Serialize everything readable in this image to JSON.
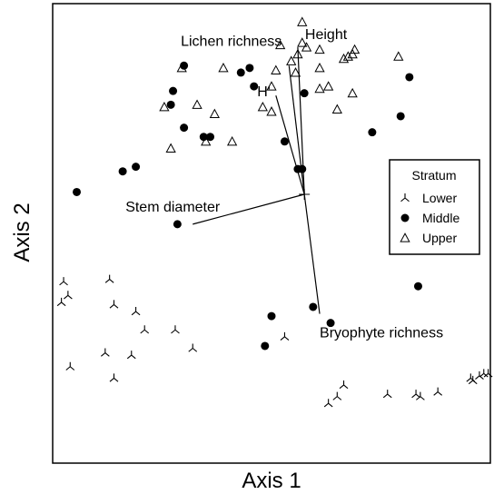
{
  "chart_data": {
    "type": "scatter",
    "xlabel": "Axis 1",
    "ylabel": "Axis 2",
    "xlim": [
      0,
      100
    ],
    "ylim": [
      0,
      100
    ],
    "grid": false,
    "axis_ticks": false,
    "legend": {
      "title": "Stratum",
      "placement": "right",
      "entries": [
        {
          "name": "Lower",
          "marker": "tri-down"
        },
        {
          "name": "Middle",
          "marker": "circle"
        },
        {
          "name": "Upper",
          "marker": "triangle-open"
        }
      ]
    },
    "series": [
      {
        "name": "Lower",
        "marker": "tri-down",
        "points": [
          [
            2.5,
            39.5
          ],
          [
            3.5,
            36.5
          ],
          [
            2,
            35
          ],
          [
            13,
            40
          ],
          [
            14,
            34.5
          ],
          [
            19,
            33
          ],
          [
            21,
            29
          ],
          [
            28,
            29
          ],
          [
            12,
            24
          ],
          [
            18,
            23.5
          ],
          [
            4,
            21
          ],
          [
            14,
            18.5
          ],
          [
            32,
            25
          ],
          [
            53,
            27.5
          ],
          [
            66.5,
            17
          ],
          [
            65,
            14.5
          ],
          [
            63,
            13
          ],
          [
            76.5,
            15
          ],
          [
            83,
            15
          ],
          [
            84,
            14.5
          ],
          [
            88,
            15.5
          ],
          [
            95.5,
            18.5
          ],
          [
            96,
            18
          ],
          [
            97.5,
            19
          ],
          [
            98.5,
            19.5
          ],
          [
            99.5,
            19.5
          ]
        ]
      },
      {
        "name": "Middle",
        "marker": "circle",
        "points": [
          [
            30,
            86.5
          ],
          [
            27.5,
            81
          ],
          [
            27,
            78
          ],
          [
            30,
            73
          ],
          [
            34.5,
            71
          ],
          [
            36,
            71
          ],
          [
            43,
            85
          ],
          [
            45,
            86
          ],
          [
            46,
            82
          ],
          [
            53,
            70
          ],
          [
            56,
            64
          ],
          [
            57,
            64
          ],
          [
            57.5,
            80.5
          ],
          [
            81.5,
            84
          ],
          [
            79.5,
            75.5
          ],
          [
            73,
            72
          ],
          [
            16,
            63.5
          ],
          [
            19,
            64.5
          ],
          [
            5.5,
            59
          ],
          [
            28.5,
            52
          ],
          [
            50,
            32
          ],
          [
            59.5,
            34
          ],
          [
            63.5,
            30.5
          ],
          [
            48.5,
            25.5
          ],
          [
            83.5,
            38.5
          ]
        ]
      },
      {
        "name": "Upper",
        "marker": "triangle-open",
        "points": [
          [
            57,
            96
          ],
          [
            52,
            91
          ],
          [
            57,
            91.5
          ],
          [
            56,
            89
          ],
          [
            58,
            90.5
          ],
          [
            54.5,
            87.5
          ],
          [
            55.5,
            85
          ],
          [
            51,
            85.5
          ],
          [
            50,
            82
          ],
          [
            61,
            90
          ],
          [
            61,
            86
          ],
          [
            63,
            82
          ],
          [
            61,
            81.5
          ],
          [
            66.5,
            88
          ],
          [
            67.5,
            88.5
          ],
          [
            68.5,
            89
          ],
          [
            69,
            90
          ],
          [
            79,
            88.5
          ],
          [
            29.5,
            86
          ],
          [
            25.5,
            77.5
          ],
          [
            33,
            78
          ],
          [
            37,
            76
          ],
          [
            48,
            77.5
          ],
          [
            50,
            76.5
          ],
          [
            35,
            70
          ],
          [
            27,
            68.5
          ],
          [
            41,
            70
          ],
          [
            39,
            86
          ],
          [
            68.5,
            80.5
          ],
          [
            65,
            77
          ]
        ]
      }
    ],
    "vectors": [
      {
        "label": "Height",
        "end": [
          56,
          90.5
        ]
      },
      {
        "label": "Lichen richness",
        "end": [
          54,
          86.5
        ]
      },
      {
        "label": "H'",
        "end": [
          51,
          80
        ]
      },
      {
        "label": "Stem diameter",
        "end": [
          32,
          52
        ]
      },
      {
        "label": "Bryophyte richness",
        "end": [
          61,
          32.5
        ]
      }
    ],
    "vector_origin": [
      57.5,
      58.5
    ]
  }
}
